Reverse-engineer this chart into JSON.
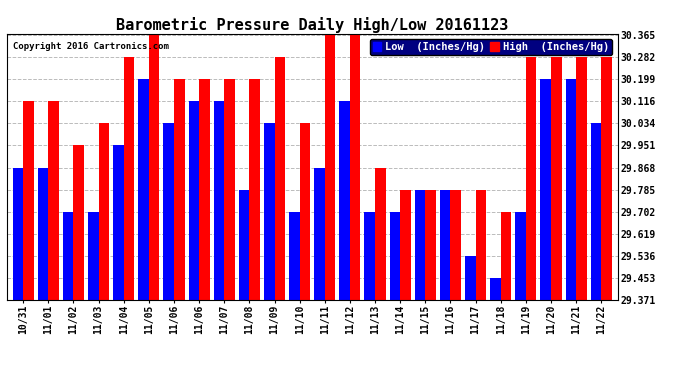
{
  "title": "Barometric Pressure Daily High/Low 20161123",
  "copyright": "Copyright 2016 Cartronics.com",
  "ylabel_low": "Low  (Inches/Hg)",
  "ylabel_high": "High  (Inches/Hg)",
  "categories": [
    "10/31",
    "11/01",
    "11/02",
    "11/03",
    "11/04",
    "11/05",
    "11/06",
    "11/06",
    "11/07",
    "11/08",
    "11/09",
    "11/10",
    "11/11",
    "11/12",
    "11/13",
    "11/14",
    "11/15",
    "11/16",
    "11/17",
    "11/18",
    "11/19",
    "11/20",
    "11/21",
    "11/22"
  ],
  "low": [
    29.868,
    29.868,
    29.702,
    29.702,
    29.951,
    30.199,
    30.034,
    30.116,
    30.116,
    29.785,
    30.034,
    29.702,
    29.868,
    30.116,
    29.702,
    29.702,
    29.785,
    29.785,
    29.536,
    29.453,
    29.702,
    30.199,
    30.199,
    30.034
  ],
  "high": [
    30.116,
    30.116,
    29.951,
    30.034,
    30.282,
    30.365,
    30.199,
    30.199,
    30.199,
    30.199,
    30.282,
    30.034,
    30.365,
    30.365,
    29.868,
    29.785,
    29.785,
    29.785,
    29.785,
    29.702,
    30.282,
    30.282,
    30.282,
    30.282
  ],
  "bar_color_low": "#0000ff",
  "bar_color_high": "#ff0000",
  "ylim_min": 29.371,
  "ylim_max": 30.365,
  "yticks": [
    29.371,
    29.453,
    29.536,
    29.619,
    29.702,
    29.785,
    29.868,
    29.951,
    30.034,
    30.116,
    30.199,
    30.282,
    30.365
  ],
  "title_fontsize": 11,
  "tick_fontsize": 7,
  "legend_fontsize": 7.5
}
